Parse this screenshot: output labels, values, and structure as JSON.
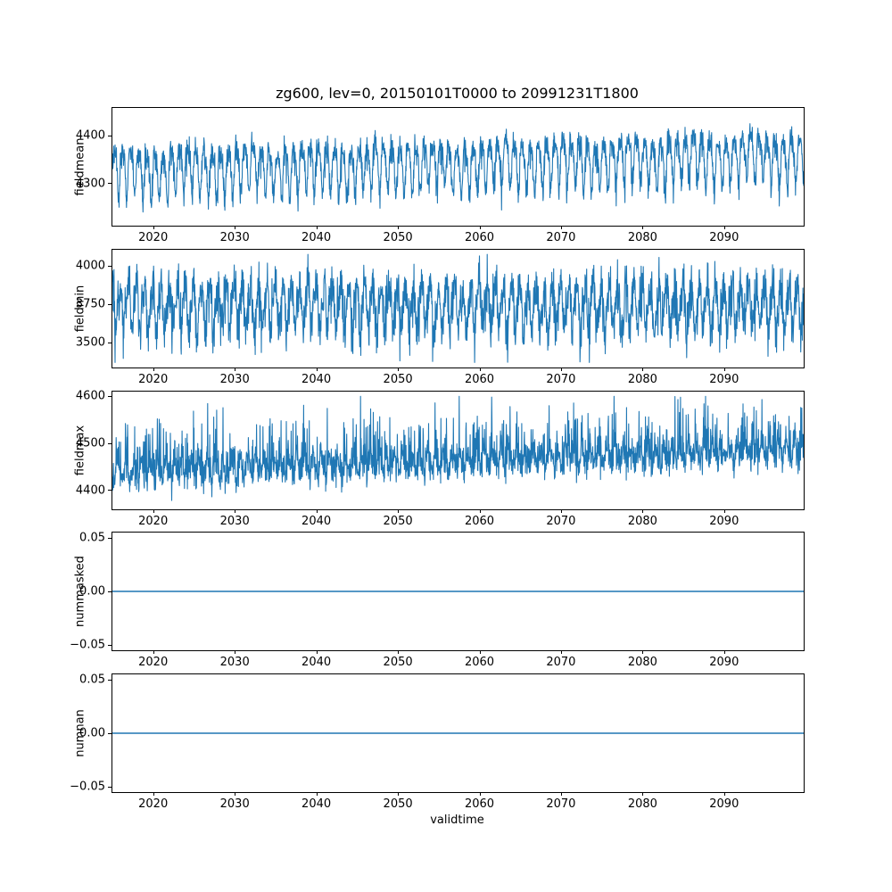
{
  "figure": {
    "title": "zg600, lev=0, 20150101T0000 to 20991231T1800",
    "xlabel": "validtime",
    "background_color": "#ffffff",
    "line_color": "#1f77b4"
  },
  "chart_data": [
    {
      "type": "line",
      "ylabel": "fieldmean",
      "xlim": [
        2015.0,
        2099.75
      ],
      "ylim": [
        4212,
        4458
      ],
      "xticks": [
        2020,
        2030,
        2040,
        2050,
        2060,
        2070,
        2080,
        2090
      ],
      "yticks": [
        {
          "value": 4300,
          "label": "4300"
        },
        {
          "value": 4400,
          "label": "4400"
        }
      ],
      "grid": false,
      "legend": false,
      "series": [
        {
          "name": "fieldmean",
          "color": "#1f77b4",
          "linewidth": 1.1,
          "seed": 11,
          "n_points": 2600,
          "base": 4328,
          "trend_per_year": 0.4,
          "components": [
            {
              "amp": 45,
              "freq": 1,
              "phase": 0.0
            },
            {
              "amp": 14,
              "freq": 2,
              "phase": 1.3
            },
            {
              "amp": 8,
              "freq": 0.13,
              "phase": 0.7
            }
          ],
          "noise_sigma": 13,
          "neg_spike_amp": 35,
          "clip": [
            4220,
            4450
          ]
        }
      ]
    },
    {
      "type": "line",
      "ylabel": "fieldmin",
      "xlim": [
        2015.0,
        2099.75
      ],
      "ylim": [
        3337,
        4105
      ],
      "xticks": [
        2020,
        2030,
        2040,
        2050,
        2060,
        2070,
        2080,
        2090
      ],
      "yticks": [
        {
          "value": 3500,
          "label": "3500"
        },
        {
          "value": 3750,
          "label": "3750"
        },
        {
          "value": 4000,
          "label": "4000"
        }
      ],
      "grid": false,
      "legend": false,
      "series": [
        {
          "name": "fieldmin",
          "color": "#1f77b4",
          "linewidth": 1.1,
          "seed": 22,
          "n_points": 2600,
          "base": 3745,
          "trend_per_year": 0.0,
          "components": [
            {
              "amp": 135,
              "freq": 1,
              "phase": 2.0
            },
            {
              "amp": 40,
              "freq": 2,
              "phase": 0.5
            }
          ],
          "noise_sigma": 75,
          "neg_spike_amp": 140,
          "pos_spike_amp": 60,
          "clip": [
            3370,
            4075
          ]
        }
      ]
    },
    {
      "type": "line",
      "ylabel": "fieldmax",
      "xlim": [
        2015.0,
        2099.75
      ],
      "ylim": [
        4360,
        4610
      ],
      "xticks": [
        2020,
        2030,
        2040,
        2050,
        2060,
        2070,
        2080,
        2090
      ],
      "yticks": [
        {
          "value": 4400,
          "label": "4400"
        },
        {
          "value": 4500,
          "label": "4500"
        },
        {
          "value": 4600,
          "label": "4600"
        }
      ],
      "grid": false,
      "legend": false,
      "series": [
        {
          "name": "fieldmax",
          "color": "#1f77b4",
          "linewidth": 1.1,
          "seed": 33,
          "n_points": 2600,
          "base": 4437,
          "trend_per_year": 0.55,
          "components": [
            {
              "amp": 18,
              "freq": 1,
              "phase": 4.0
            },
            {
              "amp": 7,
              "freq": 2,
              "phase": 1.1
            }
          ],
          "noise_sigma": 16,
          "pos_spike_amp": 115,
          "clip": [
            4368,
            4600
          ]
        }
      ]
    },
    {
      "type": "line",
      "ylabel": "nummasked",
      "xlim": [
        2015.0,
        2099.75
      ],
      "ylim": [
        -0.055,
        0.055
      ],
      "xticks": [
        2020,
        2030,
        2040,
        2050,
        2060,
        2070,
        2080,
        2090
      ],
      "yticks": [
        {
          "value": -0.05,
          "label": "−0.05"
        },
        {
          "value": 0.0,
          "label": "0.00"
        },
        {
          "value": 0.05,
          "label": "0.05"
        }
      ],
      "grid": false,
      "legend": false,
      "series": [
        {
          "name": "nummasked",
          "color": "#1f77b4",
          "linewidth": 1.5,
          "seed": 44,
          "n_points": 2,
          "base": 0.0,
          "trend_per_year": 0.0,
          "components": [],
          "noise_sigma": 0,
          "constant_value": 0.0
        }
      ]
    },
    {
      "type": "line",
      "ylabel": "numnan",
      "xlim": [
        2015.0,
        2099.75
      ],
      "ylim": [
        -0.055,
        0.055
      ],
      "xticks": [
        2020,
        2030,
        2040,
        2050,
        2060,
        2070,
        2080,
        2090
      ],
      "yticks": [
        {
          "value": -0.05,
          "label": "−0.05"
        },
        {
          "value": 0.0,
          "label": "0.00"
        },
        {
          "value": 0.05,
          "label": "0.05"
        }
      ],
      "grid": false,
      "legend": false,
      "series": [
        {
          "name": "numnan",
          "color": "#1f77b4",
          "linewidth": 1.5,
          "seed": 55,
          "n_points": 2,
          "base": 0.0,
          "trend_per_year": 0.0,
          "components": [],
          "noise_sigma": 0,
          "constant_value": 0.0
        }
      ]
    }
  ]
}
